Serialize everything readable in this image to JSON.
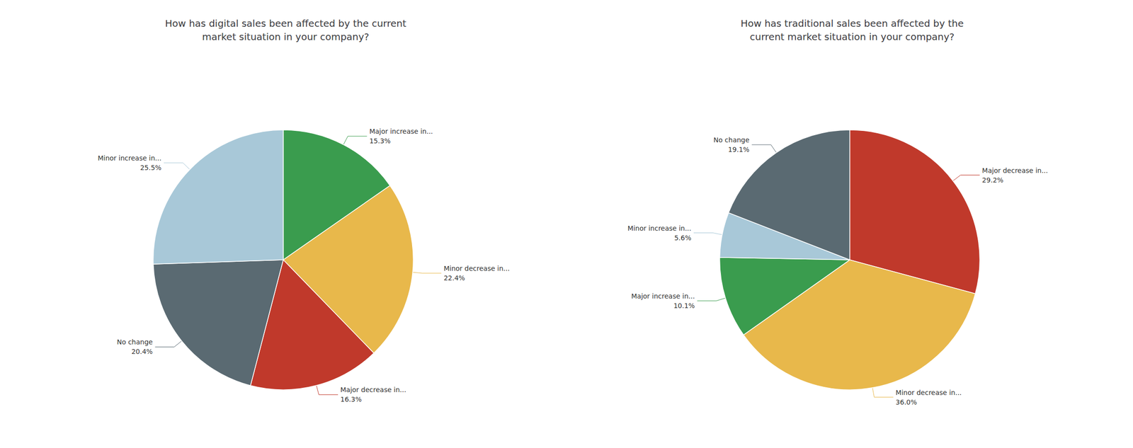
{
  "chart_data": [
    {
      "type": "pie",
      "title": "How has digital sales been affected by the current\nmarket situation in your company?",
      "categories": [
        "Major increase in...",
        "Minor decrease in...",
        "Major decrease in...",
        "No change",
        "Minor increase in..."
      ],
      "values": [
        15.3,
        22.4,
        16.3,
        20.4,
        25.5
      ],
      "value_labels": [
        "15.3%",
        "22.4%",
        "16.3%",
        "20.4%",
        "25.5%"
      ],
      "colors": [
        "#3a9c4e",
        "#e8b84b",
        "#c0392b",
        "#5a6a72",
        "#a8c8d8"
      ],
      "data_labels": true
    },
    {
      "type": "pie",
      "title": "How has traditional sales been affected by the\ncurrent market situation in your company?",
      "categories": [
        "Major decrease in...",
        "Minor decrease in...",
        "Major increase in...",
        "Minor increase in...",
        "No change"
      ],
      "values": [
        29.2,
        36.0,
        10.1,
        5.6,
        19.1
      ],
      "value_labels": [
        "29.2%",
        "36.0%",
        "10.1%",
        "5.6%",
        "19.1%"
      ],
      "colors": [
        "#c0392b",
        "#e8b84b",
        "#3a9c4e",
        "#a8c8d8",
        "#5a6a72"
      ],
      "data_labels": true
    }
  ]
}
